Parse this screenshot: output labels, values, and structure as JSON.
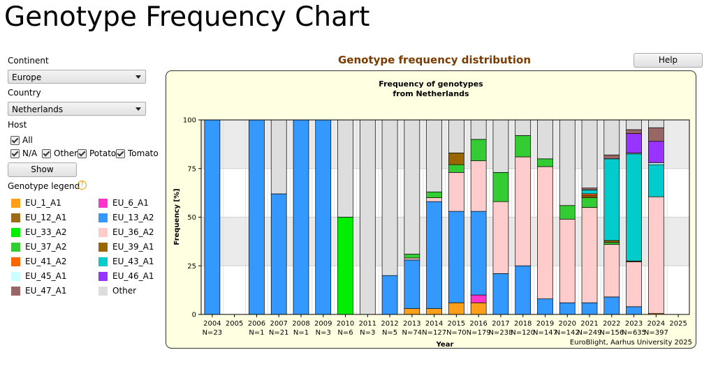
{
  "page_title": "Genotype Frequency Chart",
  "sidebar": {
    "continent_label": "Continent",
    "continent": "Europe",
    "country_label": "Country",
    "country": "Netherlands",
    "host_label": "Host",
    "hosts": [
      {
        "label": "All",
        "checked": true
      },
      {
        "label": "N/A",
        "checked": true
      },
      {
        "label": "Other",
        "checked": true
      },
      {
        "label": "Potato",
        "checked": true
      },
      {
        "label": "Tomato",
        "checked": true
      }
    ],
    "show_button": "Show",
    "legend_label": "Genotype legend",
    "legend_help": "?"
  },
  "panel_title": "Genotype frequency distribution",
  "help_button": "Help",
  "chart_data": {
    "type": "stacked_bar",
    "title": [
      "Frequency of genotypes",
      "from Netherlands"
    ],
    "ylabel": "Frequency [%]",
    "xlabel": "Year",
    "credit": "EuroBlight, Aarhus University 2025",
    "categories": [
      "2004",
      "2005",
      "2006",
      "2007",
      "2008",
      "2009",
      "2010",
      "2011",
      "2012",
      "2013",
      "2014",
      "2015",
      "2016",
      "2017",
      "2018",
      "2019",
      "2020",
      "2021",
      "2022",
      "2023",
      "2024",
      "2025"
    ],
    "n_labels": [
      "N=23",
      null,
      "N=1",
      "N=21",
      "N=1",
      "N=3",
      "N=6",
      "N=3",
      "N=5",
      "N=74",
      "N=127",
      "N=70",
      "N=179",
      "N=238",
      "N=120",
      "N=147",
      "N=142",
      "N=249",
      "N=156",
      "N=635",
      "N=397",
      null
    ],
    "ylim": [
      0,
      100
    ],
    "yticks": [
      0,
      25,
      50,
      75,
      100
    ],
    "grid": true,
    "series": [
      {
        "name": "EU_1_A1",
        "color": "#ff9f1a",
        "values": [
          null,
          null,
          null,
          null,
          null,
          null,
          null,
          null,
          null,
          3,
          3,
          6,
          6,
          null,
          null,
          null,
          null,
          null,
          null,
          null,
          0.5,
          null
        ]
      },
      {
        "name": "EU_6_A1",
        "color": "#ff33cc",
        "values": [
          null,
          null,
          null,
          null,
          null,
          null,
          null,
          null,
          null,
          null,
          null,
          null,
          4,
          null,
          null,
          null,
          null,
          null,
          null,
          null,
          null,
          null
        ]
      },
      {
        "name": "EU_12_A1",
        "color": "#9c6a1a",
        "values": [
          null,
          null,
          null,
          null,
          null,
          null,
          null,
          null,
          null,
          null,
          null,
          null,
          null,
          null,
          null,
          null,
          null,
          null,
          null,
          null,
          null,
          null
        ]
      },
      {
        "name": "EU_13_A2",
        "color": "#3399ff",
        "values": [
          100,
          null,
          100,
          62,
          100,
          100,
          null,
          null,
          20,
          25,
          55,
          47,
          43,
          21,
          25,
          8,
          6,
          6,
          9,
          4,
          null,
          null
        ]
      },
      {
        "name": "EU_33_A2",
        "color": "#00ee00",
        "values": [
          null,
          null,
          null,
          null,
          null,
          null,
          50,
          null,
          null,
          null,
          null,
          null,
          null,
          null,
          null,
          null,
          null,
          null,
          null,
          null,
          null,
          null
        ]
      },
      {
        "name": "EU_36_A2",
        "color": "#ffcccc",
        "values": [
          null,
          null,
          null,
          null,
          null,
          null,
          null,
          null,
          null,
          1,
          2,
          20,
          26,
          37,
          56,
          68,
          43,
          49,
          27,
          23,
          60,
          null
        ]
      },
      {
        "name": "EU_37_A2",
        "color": "#33cc33",
        "values": [
          null,
          null,
          null,
          null,
          null,
          null,
          null,
          null,
          null,
          2,
          3,
          4,
          11,
          15,
          11,
          4,
          7,
          5,
          1,
          null,
          null,
          null
        ]
      },
      {
        "name": "EU_39_A1",
        "color": "#996600",
        "values": [
          null,
          null,
          null,
          null,
          null,
          null,
          null,
          null,
          null,
          null,
          null,
          6,
          null,
          null,
          null,
          null,
          null,
          1,
          1,
          0.5,
          null,
          null
        ]
      },
      {
        "name": "EU_41_A2",
        "color": "#ff6600",
        "values": [
          null,
          null,
          null,
          null,
          null,
          null,
          null,
          null,
          null,
          null,
          null,
          null,
          null,
          null,
          null,
          null,
          null,
          1,
          null,
          null,
          null,
          null
        ]
      },
      {
        "name": "EU_43_A1",
        "color": "#00cccc",
        "values": [
          null,
          null,
          null,
          null,
          null,
          null,
          null,
          null,
          null,
          null,
          null,
          null,
          null,
          null,
          null,
          null,
          null,
          2,
          42,
          55,
          16.5,
          null
        ]
      },
      {
        "name": "EU_45_A1",
        "color": "#ccffff",
        "values": [
          null,
          null,
          null,
          null,
          null,
          null,
          null,
          null,
          null,
          null,
          null,
          null,
          null,
          null,
          null,
          null,
          null,
          null,
          null,
          0.5,
          1,
          null
        ]
      },
      {
        "name": "EU_46_A1",
        "color": "#9933ff",
        "values": [
          null,
          null,
          null,
          null,
          null,
          null,
          null,
          null,
          null,
          null,
          null,
          null,
          null,
          null,
          null,
          null,
          null,
          null,
          null,
          10,
          11,
          null
        ]
      },
      {
        "name": "EU_47_A1",
        "color": "#996666",
        "values": [
          null,
          null,
          null,
          null,
          null,
          null,
          null,
          null,
          null,
          null,
          null,
          null,
          null,
          null,
          null,
          null,
          null,
          1,
          2,
          2,
          7,
          null
        ]
      },
      {
        "name": "Other",
        "color": "#dddddd",
        "values": [
          null,
          null,
          null,
          38,
          null,
          null,
          50,
          100,
          80,
          69,
          37,
          17,
          10,
          27,
          8,
          20,
          44,
          35,
          18,
          5,
          4,
          null
        ]
      }
    ]
  }
}
